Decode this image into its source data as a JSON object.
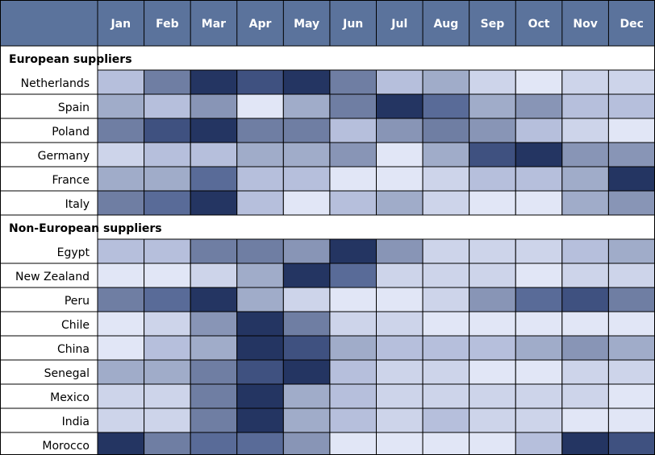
{
  "chart_data": {
    "type": "heatmap",
    "columns": [
      "Jan",
      "Feb",
      "Mar",
      "Apr",
      "May",
      "Jun",
      "Jul",
      "Aug",
      "Sep",
      "Oct",
      "Nov",
      "Dec"
    ],
    "color_scale": [
      "#e1e6f6",
      "#cdd4ea",
      "#b6bfdc",
      "#a0acc9",
      "#8895b6",
      "#6f7ea3",
      "#596b98",
      "#3f5180",
      "#243562"
    ],
    "intensity_scale": [
      1,
      9
    ],
    "groups": [
      {
        "label": "European suppliers",
        "rows": [
          {
            "label": "Netherlands",
            "values": [
              3,
              6,
              9,
              8,
              9,
              6,
              3,
              4,
              2,
              1,
              2,
              2
            ]
          },
          {
            "label": "Spain",
            "values": [
              4,
              3,
              5,
              1,
              4,
              6,
              9,
              7,
              4,
              5,
              3,
              3
            ]
          },
          {
            "label": "Poland",
            "values": [
              6,
              8,
              9,
              6,
              6,
              3,
              5,
              6,
              5,
              3,
              2,
              1
            ]
          },
          {
            "label": "Germany",
            "values": [
              2,
              3,
              3,
              4,
              4,
              5,
              1,
              4,
              8,
              9,
              5,
              5
            ]
          },
          {
            "label": "France",
            "values": [
              4,
              4,
              7,
              3,
              3,
              1,
              1,
              2,
              3,
              3,
              4,
              9
            ]
          },
          {
            "label": "Italy",
            "values": [
              6,
              7,
              9,
              3,
              1,
              3,
              4,
              2,
              1,
              1,
              4,
              5
            ]
          }
        ]
      },
      {
        "label": "Non-European suppliers",
        "rows": [
          {
            "label": "Egypt",
            "values": [
              3,
              3,
              6,
              6,
              5,
              9,
              5,
              2,
              2,
              2,
              3,
              4
            ]
          },
          {
            "label": "New Zealand",
            "values": [
              1,
              1,
              2,
              4,
              9,
              7,
              2,
              2,
              2,
              1,
              2,
              2
            ]
          },
          {
            "label": "Peru",
            "values": [
              6,
              7,
              9,
              4,
              2,
              1,
              1,
              2,
              5,
              7,
              8,
              6
            ]
          },
          {
            "label": "Chile",
            "values": [
              1,
              2,
              5,
              9,
              6,
              2,
              2,
              1,
              1,
              1,
              1,
              1
            ]
          },
          {
            "label": "China",
            "values": [
              1,
              3,
              4,
              9,
              8,
              4,
              3,
              3,
              3,
              4,
              5,
              4
            ]
          },
          {
            "label": "Senegal",
            "values": [
              4,
              4,
              6,
              8,
              9,
              3,
              2,
              2,
              1,
              1,
              2,
              2
            ]
          },
          {
            "label": "Mexico",
            "values": [
              2,
              2,
              6,
              9,
              4,
              3,
              2,
              2,
              2,
              2,
              2,
              1
            ]
          },
          {
            "label": "India",
            "values": [
              2,
              2,
              6,
              9,
              4,
              3,
              2,
              3,
              2,
              2,
              1,
              1
            ]
          },
          {
            "label": "Morocco",
            "values": [
              9,
              6,
              7,
              7,
              5,
              1,
              1,
              1,
              1,
              3,
              9,
              8
            ]
          }
        ]
      }
    ],
    "colors": {
      "header_background": "#5b739c",
      "header_text": "#ffffff",
      "border": "#000000"
    }
  }
}
